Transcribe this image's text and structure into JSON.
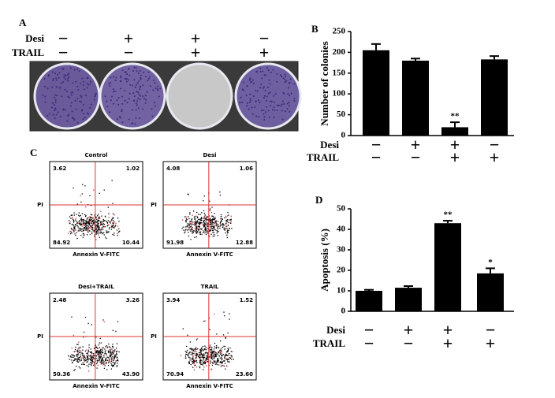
{
  "panel_a": {
    "label": "A",
    "treatments": [
      {
        "name": "Desi",
        "signs": [
          "−",
          "+",
          "+",
          "−"
        ]
      },
      {
        "name": "TRAIL",
        "signs": [
          "−",
          "−",
          "+",
          "+"
        ]
      }
    ]
  },
  "chart_data": [
    {
      "type": "bar",
      "panel": "B",
      "y_label": "Number of colonies",
      "values": [
        205,
        180,
        20,
        183
      ],
      "errors": [
        15,
        5,
        12,
        8
      ],
      "significance": [
        null,
        null,
        "**",
        null
      ],
      "color": "#000000",
      "ylim": [
        0,
        250
      ],
      "yticks": [
        0,
        50,
        100,
        150,
        200,
        250
      ],
      "treatments": [
        {
          "name": "Desi",
          "signs": [
            "−",
            "+",
            "+",
            "−"
          ]
        },
        {
          "name": "TRAIL",
          "signs": [
            "−",
            "−",
            "+",
            "+"
          ]
        }
      ]
    },
    {
      "type": "bar",
      "panel": "D",
      "y_label": "Apoptosis (%)",
      "values": [
        10,
        11.5,
        43,
        18.5
      ],
      "errors": [
        0.5,
        0.8,
        1.2,
        2.5
      ],
      "significance": [
        null,
        null,
        "**",
        "*"
      ],
      "color": "#000000",
      "ylim": [
        0,
        50
      ],
      "yticks": [
        0,
        10,
        20,
        30,
        40,
        50
      ],
      "treatments": [
        {
          "name": "Desi",
          "signs": [
            "−",
            "+",
            "+",
            "−"
          ]
        },
        {
          "name": "TRAIL",
          "signs": [
            "−",
            "−",
            "+",
            "+"
          ]
        }
      ]
    }
  ],
  "panel_c": {
    "label": "C",
    "x_label": "Annexin V-FITC",
    "y_label": "PI",
    "plots": [
      {
        "title": "Control",
        "quadrants": [
          "3.62",
          "1.02",
          "84.92",
          "10.44"
        ]
      },
      {
        "title": "Desi",
        "quadrants": [
          "4.08",
          "1.06",
          "91.98",
          "12.88"
        ]
      },
      {
        "title": "Desi+TRAIL",
        "quadrants": [
          "2.48",
          "3.26",
          "50.36",
          "43.90"
        ]
      },
      {
        "title": "TRAIL",
        "quadrants": [
          "3.94",
          "1.52",
          "70.94",
          "23.60"
        ]
      }
    ]
  }
}
